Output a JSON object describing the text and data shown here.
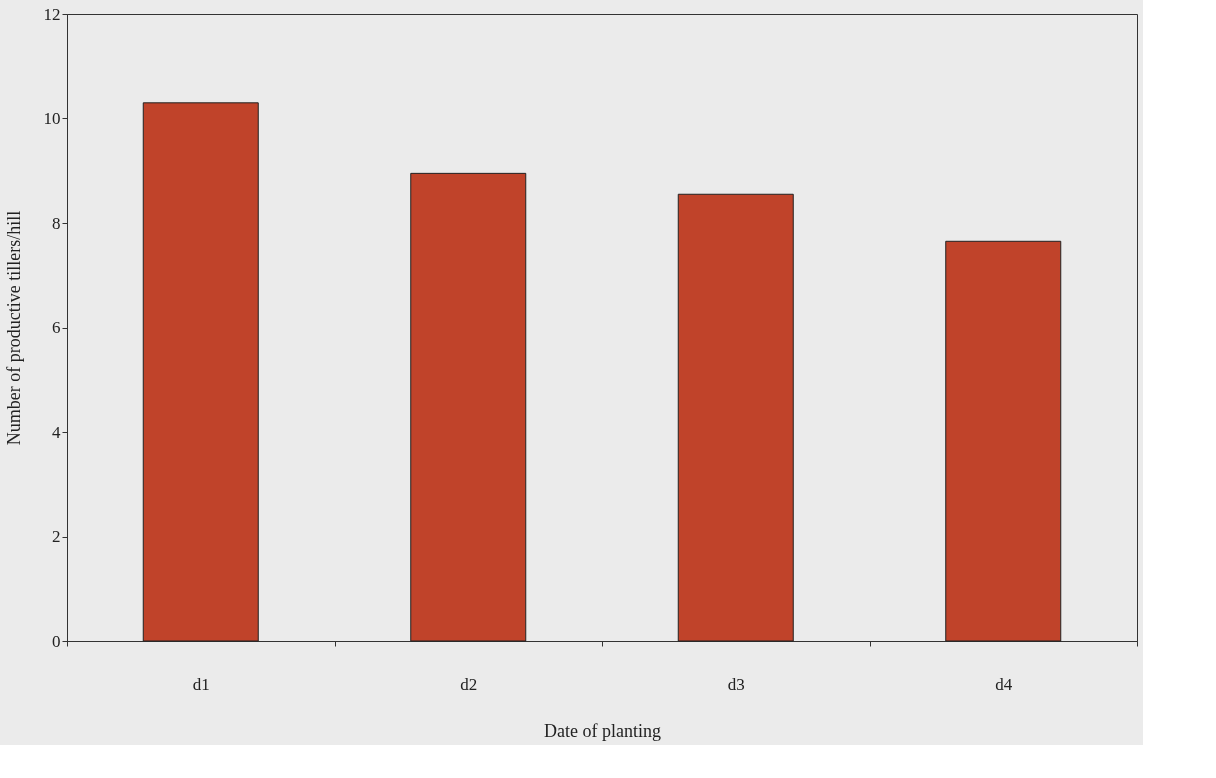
{
  "chart_data": {
    "type": "bar",
    "xlabel": "Date of planting",
    "ylabel": "Number of productive tillers/hill",
    "categories": [
      "d1",
      "d2",
      "d3",
      "d4"
    ],
    "values": [
      10.3,
      8.95,
      8.55,
      7.65
    ],
    "color": "#c0432a",
    "ylim": [
      0,
      12
    ],
    "yticks": [
      0,
      2,
      4,
      6,
      8,
      10,
      12
    ],
    "grid": false
  }
}
